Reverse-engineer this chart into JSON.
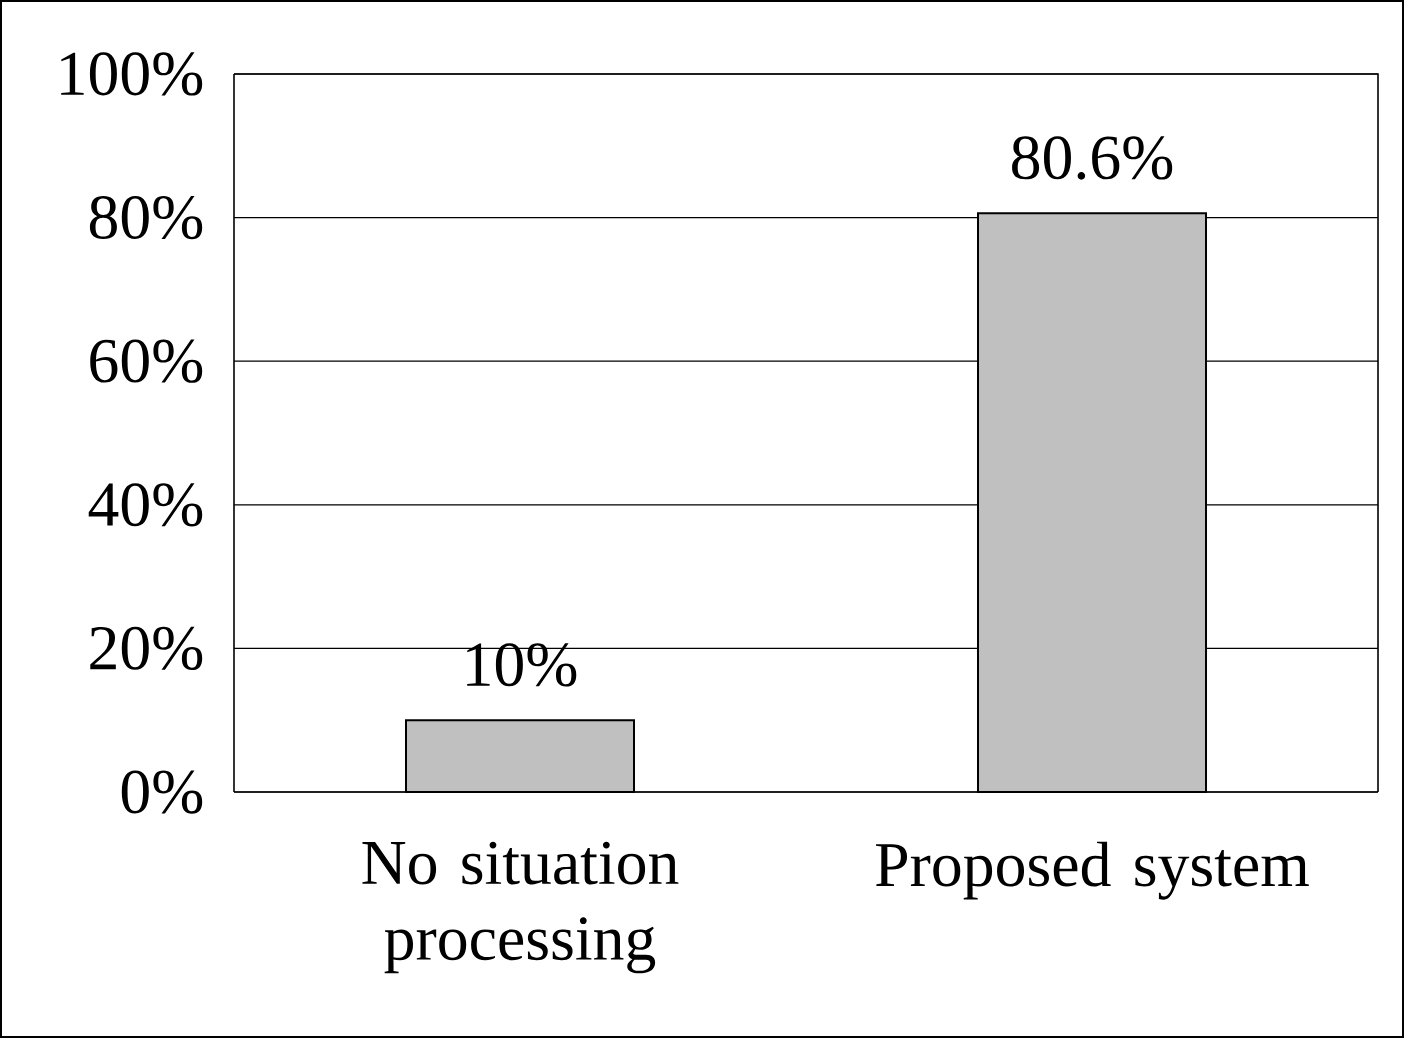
{
  "chart_data": {
    "type": "bar",
    "categories": [
      "No situation processing",
      "Proposed system"
    ],
    "values": [
      10,
      80.6
    ],
    "value_labels": [
      "10%",
      "80.6%"
    ],
    "color": "#c0c0c0",
    "ylim": [
      0,
      100
    ],
    "yticks": [
      {
        "value": 0,
        "label": "0%"
      },
      {
        "value": 20,
        "label": "20%"
      },
      {
        "value": 40,
        "label": "40%"
      },
      {
        "value": 60,
        "label": "60%"
      },
      {
        "value": 80,
        "label": "80%"
      },
      {
        "value": 100,
        "label": "100%"
      }
    ],
    "grid": "y"
  }
}
